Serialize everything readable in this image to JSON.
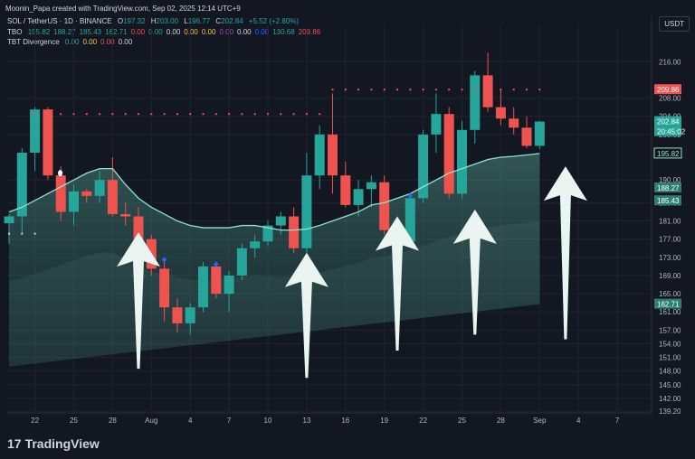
{
  "header": {
    "credit": "Moonin_Papa created with TradingView.com, Sep 02, 2025 12:14 UTC+9",
    "symbol_line": {
      "symbol": "SOL / TetherUS · 1D · BINANCE",
      "ohlc": [
        {
          "k": "O",
          "v": "197.32"
        },
        {
          "k": "H",
          "v": "203.00"
        },
        {
          "k": "L",
          "v": "196.77"
        },
        {
          "k": "C",
          "v": "202.84"
        }
      ],
      "change": "+5.52 (+2.80%)"
    },
    "tbo_line": {
      "name": "TBO",
      "values": [
        "195.82",
        "188.27",
        "185.43",
        "162.71",
        "0.00",
        "0.00",
        "0.00",
        "0.00",
        "0.00",
        "0.00",
        "0.00",
        "0.00",
        "130.68",
        "209.86"
      ]
    },
    "divergence_line": {
      "name": "TBT Divergence",
      "values": [
        "0.00",
        "0.00",
        "0.00",
        "0.00"
      ]
    },
    "currency": "USDT"
  },
  "branding": {
    "logo_text": "TradingView",
    "logo_mark": "17"
  },
  "colors": {
    "bg": "#131722",
    "up": "#26a69a",
    "down": "#ef5350",
    "grid": "#1f2330",
    "line": "#8fe3cf",
    "dots": "#ef5350",
    "diamond": "#2962ff",
    "arrow": "#eaf5f1"
  },
  "chart_data": {
    "type": "candlestick",
    "ylim": [
      139.2,
      224
    ],
    "y_ticks": [
      "216.00",
      "208.00",
      "204.00",
      "200.00",
      "190.00",
      "185.00",
      "181.00",
      "177.00",
      "173.00",
      "169.00",
      "165.00",
      "161.00",
      "157.00",
      "154.00",
      "151.00",
      "148.00",
      "145.00",
      "142.00",
      "139.20"
    ],
    "x_ticks": [
      "22",
      "25",
      "28",
      "Aug",
      "4",
      "7",
      "10",
      "13",
      "16",
      "19",
      "22",
      "25",
      "28",
      "Sep",
      "4",
      "7"
    ],
    "price_labels": [
      {
        "value": "209.86",
        "kind": "down"
      },
      {
        "value": "202.84",
        "kind": "up"
      },
      {
        "value": "20:45:02",
        "kind": "up"
      },
      {
        "value": "195.82",
        "kind": "line"
      },
      {
        "value": "188.27",
        "kind": "band"
      },
      {
        "value": "185.43",
        "kind": "band"
      },
      {
        "value": "162.71",
        "kind": "band"
      }
    ],
    "candles": [
      {
        "o": 180.5,
        "h": 182.5,
        "l": 176,
        "c": 182
      },
      {
        "o": 182,
        "h": 197,
        "l": 178,
        "c": 196
      },
      {
        "o": 196,
        "h": 206,
        "l": 192,
        "c": 205.5
      },
      {
        "o": 205.5,
        "h": 206,
        "l": 190,
        "c": 191
      },
      {
        "o": 191,
        "h": 193,
        "l": 181,
        "c": 183
      },
      {
        "o": 183,
        "h": 189,
        "l": 180,
        "c": 187.5
      },
      {
        "o": 187.5,
        "h": 188,
        "l": 185,
        "c": 186.5
      },
      {
        "o": 186.5,
        "h": 192,
        "l": 185,
        "c": 190
      },
      {
        "o": 190,
        "h": 195,
        "l": 182,
        "c": 182.5
      },
      {
        "o": 182.5,
        "h": 185,
        "l": 180,
        "c": 182
      },
      {
        "o": 182,
        "h": 184,
        "l": 174,
        "c": 177
      },
      {
        "o": 177,
        "h": 178,
        "l": 169,
        "c": 170.5
      },
      {
        "o": 170.5,
        "h": 172,
        "l": 159,
        "c": 162
      },
      {
        "o": 162,
        "h": 164,
        "l": 156.5,
        "c": 158.5
      },
      {
        "o": 158.5,
        "h": 163,
        "l": 156,
        "c": 162
      },
      {
        "o": 162,
        "h": 172,
        "l": 161,
        "c": 171
      },
      {
        "o": 171,
        "h": 172,
        "l": 164,
        "c": 165
      },
      {
        "o": 165,
        "h": 170,
        "l": 161,
        "c": 169
      },
      {
        "o": 169,
        "h": 176,
        "l": 168,
        "c": 175
      },
      {
        "o": 175,
        "h": 178,
        "l": 173,
        "c": 176.5
      },
      {
        "o": 176.5,
        "h": 181,
        "l": 175.5,
        "c": 180
      },
      {
        "o": 180,
        "h": 183,
        "l": 178,
        "c": 182
      },
      {
        "o": 182,
        "h": 184,
        "l": 174,
        "c": 175
      },
      {
        "o": 175,
        "h": 196,
        "l": 174,
        "c": 191
      },
      {
        "o": 191,
        "h": 202,
        "l": 188,
        "c": 200
      },
      {
        "o": 200,
        "h": 209,
        "l": 187,
        "c": 191
      },
      {
        "o": 191,
        "h": 194,
        "l": 184,
        "c": 184.5
      },
      {
        "o": 184.5,
        "h": 190,
        "l": 182,
        "c": 188
      },
      {
        "o": 188,
        "h": 191,
        "l": 184,
        "c": 189.5
      },
      {
        "o": 189.5,
        "h": 191,
        "l": 178,
        "c": 179
      },
      {
        "o": 179,
        "h": 182,
        "l": 175,
        "c": 176.5
      },
      {
        "o": 176.5,
        "h": 187,
        "l": 176,
        "c": 186
      },
      {
        "o": 186,
        "h": 201,
        "l": 185,
        "c": 200
      },
      {
        "o": 200,
        "h": 209,
        "l": 196,
        "c": 204.5
      },
      {
        "o": 204.5,
        "h": 206,
        "l": 186,
        "c": 187
      },
      {
        "o": 187,
        "h": 203,
        "l": 186,
        "c": 201
      },
      {
        "o": 201,
        "h": 214,
        "l": 198,
        "c": 213
      },
      {
        "o": 213,
        "h": 218,
        "l": 205,
        "c": 206
      },
      {
        "o": 206,
        "h": 210,
        "l": 202,
        "c": 203.5
      },
      {
        "o": 203.5,
        "h": 206,
        "l": 200,
        "c": 201.5
      },
      {
        "o": 201.5,
        "h": 204,
        "l": 197,
        "c": 197.5
      },
      {
        "o": 197.5,
        "h": 203,
        "l": 196.8,
        "c": 202.84
      }
    ],
    "baseline": [
      183,
      184,
      185.5,
      187,
      188.5,
      190,
      191.5,
      192.5,
      192.5,
      189,
      186,
      184,
      182.5,
      181,
      180,
      179.5,
      179.5,
      179.5,
      180,
      180,
      179.5,
      179,
      179,
      179.2,
      180,
      181,
      182,
      183,
      184.5,
      185,
      186,
      187,
      188.5,
      190,
      191.5,
      192.5,
      193.5,
      194.5,
      195,
      195.2,
      195.5,
      195.82
    ],
    "dots_upper": [
      {
        "value": 204.5,
        "from": 2,
        "to": 24
      },
      {
        "value": 209.86,
        "from": 25,
        "to": 41
      }
    ],
    "dots_lower": [
      {
        "value": 178.2,
        "from": 0,
        "to": 2
      }
    ],
    "diamonds": [
      {
        "index": 2,
        "value": 191.5,
        "kind": "white"
      },
      {
        "index": 12,
        "value": 172.5,
        "kind": "blue"
      },
      {
        "index": 16,
        "value": 171.5,
        "kind": "blue"
      },
      {
        "index": 31,
        "value": 186.5,
        "kind": "blue"
      }
    ],
    "arrows": [
      {
        "index": 10,
        "tip": 178.5,
        "base": 148.5
      },
      {
        "index": 23,
        "tip": 174,
        "base": 146.5
      },
      {
        "index": 30,
        "tip": 182,
        "base": 152.5
      },
      {
        "index": 36,
        "tip": 183.5,
        "base": 156
      },
      {
        "index": 43,
        "tip": 193,
        "base": 155
      }
    ]
  }
}
